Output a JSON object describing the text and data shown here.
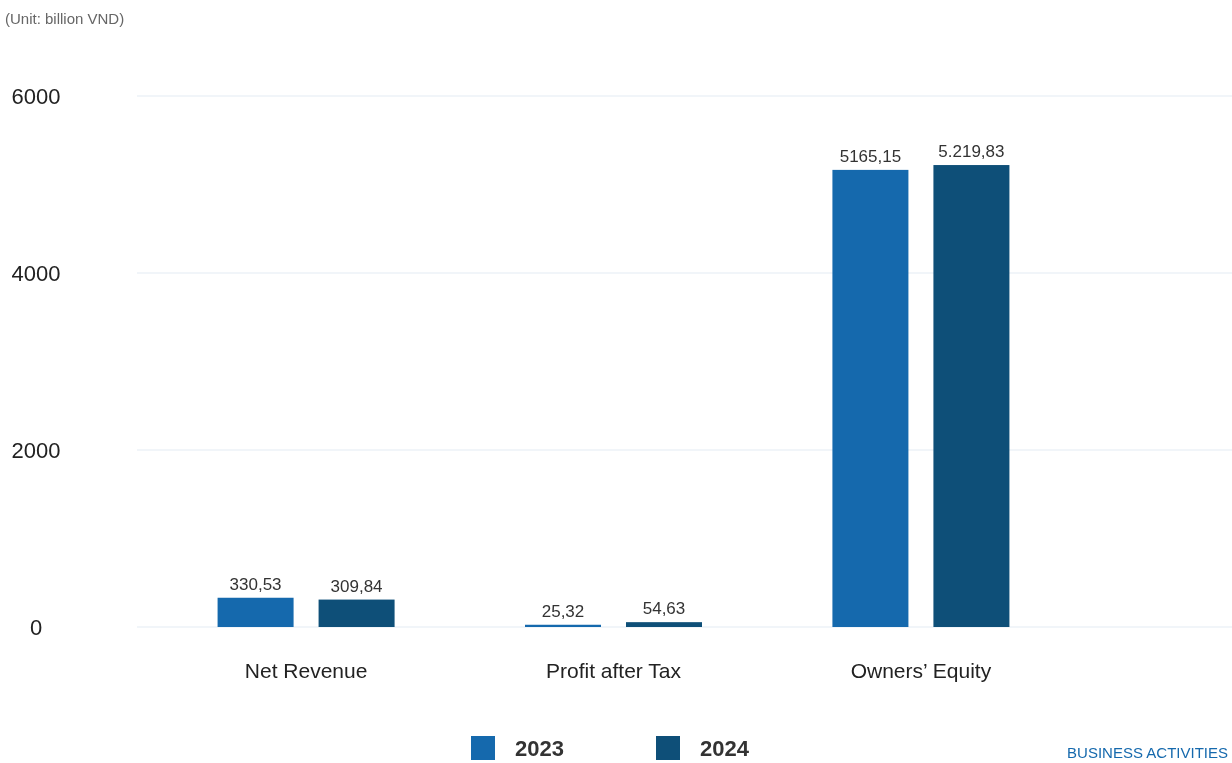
{
  "chart_data": {
    "type": "bar",
    "subtitle": "(Unit: billion VND)",
    "categories": [
      "Net Revenue",
      "Profit after Tax",
      "Owners’ Equity"
    ],
    "series": [
      {
        "name": "2023",
        "color": "#1569ad",
        "values": [
          330.53,
          25.32,
          5165.15
        ],
        "value_labels": [
          "330,53",
          "25,32",
          "5165,15"
        ]
      },
      {
        "name": "2024",
        "color": "#0e4f78",
        "values": [
          309.84,
          54.63,
          5219.83
        ],
        "value_labels": [
          "309,84",
          "54,63",
          "5.219,83"
        ]
      }
    ],
    "ylim": [
      0,
      6000
    ],
    "yticks": [
      0,
      2000,
      4000,
      6000
    ],
    "grid": "y",
    "legend": "bottom",
    "annotations": [
      "BUSINESS ACTIVITIES"
    ]
  }
}
